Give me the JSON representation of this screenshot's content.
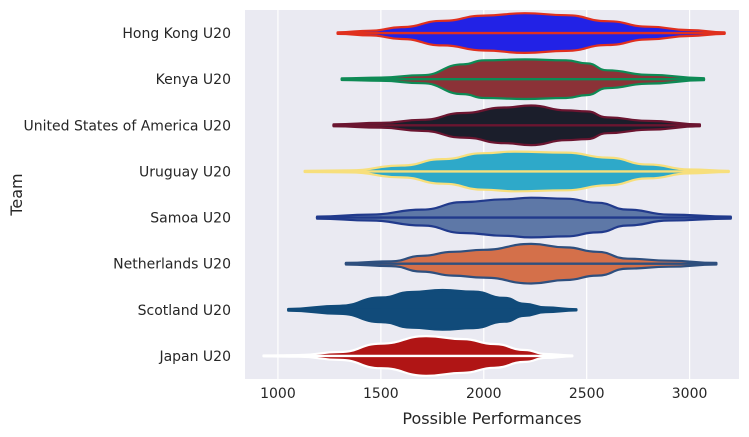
{
  "chart_data": {
    "type": "violin",
    "orientation": "horizontal",
    "title": "",
    "xlabel": "Possible Performances",
    "ylabel": "Team",
    "xlim": [
      840,
      3240
    ],
    "xticks": [
      1000,
      1500,
      2000,
      2500,
      3000
    ],
    "grid": true,
    "legend": "none",
    "background": "#eaeaf2",
    "series": [
      {
        "name": "Hong Kong U20",
        "fill": "#2222e6",
        "edge": "#e0301e",
        "min": 1290,
        "q1": 1950,
        "median": 2200,
        "q3": 2480,
        "max": 3170,
        "profile": [
          [
            1290,
            0.04
          ],
          [
            1450,
            0.12
          ],
          [
            1600,
            0.3
          ],
          [
            1800,
            0.62
          ],
          [
            2000,
            0.88
          ],
          [
            2200,
            1.0
          ],
          [
            2400,
            0.9
          ],
          [
            2600,
            0.6
          ],
          [
            2800,
            0.32
          ],
          [
            3000,
            0.15
          ],
          [
            3170,
            0.04
          ]
        ]
      },
      {
        "name": "Kenya U20",
        "fill": "#8b3237",
        "edge": "#0e8a55",
        "min": 1310,
        "q1": 1950,
        "median": 2200,
        "q3": 2450,
        "max": 3070,
        "profile": [
          [
            1310,
            0.04
          ],
          [
            1500,
            0.08
          ],
          [
            1700,
            0.2
          ],
          [
            1900,
            0.75
          ],
          [
            2000,
            0.95
          ],
          [
            2200,
            1.0
          ],
          [
            2400,
            0.95
          ],
          [
            2500,
            0.8
          ],
          [
            2600,
            0.45
          ],
          [
            2800,
            0.22
          ],
          [
            3070,
            0.05
          ]
        ]
      },
      {
        "name": "United States of America U20",
        "fill": "#1b1e2b",
        "edge": "#6b1530",
        "min": 1270,
        "q1": 1950,
        "median": 2200,
        "q3": 2450,
        "max": 3050,
        "profile": [
          [
            1270,
            0.05
          ],
          [
            1500,
            0.12
          ],
          [
            1700,
            0.28
          ],
          [
            1900,
            0.62
          ],
          [
            2100,
            0.9
          ],
          [
            2230,
            1.0
          ],
          [
            2400,
            0.75
          ],
          [
            2500,
            0.7
          ],
          [
            2600,
            0.4
          ],
          [
            2800,
            0.22
          ],
          [
            3050,
            0.05
          ]
        ]
      },
      {
        "name": "Uruguay U20",
        "fill": "#2ea9c9",
        "edge": "#f7df7c",
        "min": 1130,
        "q1": 1950,
        "median": 2180,
        "q3": 2450,
        "max": 3190,
        "profile": [
          [
            1130,
            0.03
          ],
          [
            1350,
            0.05
          ],
          [
            1600,
            0.3
          ],
          [
            1800,
            0.62
          ],
          [
            2000,
            0.92
          ],
          [
            2150,
            1.0
          ],
          [
            2400,
            0.95
          ],
          [
            2600,
            0.7
          ],
          [
            2800,
            0.35
          ],
          [
            3000,
            0.1
          ],
          [
            3190,
            0.03
          ]
        ]
      },
      {
        "name": "Samoa U20",
        "fill": "#5e78a7",
        "edge": "#213a8c",
        "min": 1190,
        "q1": 1900,
        "median": 2200,
        "q3": 2450,
        "max": 3200,
        "profile": [
          [
            1190,
            0.05
          ],
          [
            1450,
            0.15
          ],
          [
            1700,
            0.4
          ],
          [
            1900,
            0.78
          ],
          [
            2100,
            0.92
          ],
          [
            2230,
            1.0
          ],
          [
            2400,
            0.95
          ],
          [
            2550,
            0.75
          ],
          [
            2700,
            0.4
          ],
          [
            2900,
            0.15
          ],
          [
            3200,
            0.05
          ]
        ]
      },
      {
        "name": "Netherlands U20",
        "fill": "#d4704a",
        "edge": "#2e4f7e",
        "min": 1330,
        "q1": 1950,
        "median": 2200,
        "q3": 2450,
        "max": 3130,
        "profile": [
          [
            1330,
            0.04
          ],
          [
            1550,
            0.12
          ],
          [
            1700,
            0.4
          ],
          [
            1850,
            0.6
          ],
          [
            2000,
            0.7
          ],
          [
            2230,
            1.0
          ],
          [
            2400,
            0.82
          ],
          [
            2550,
            0.6
          ],
          [
            2700,
            0.25
          ],
          [
            2900,
            0.15
          ],
          [
            3130,
            0.04
          ]
        ]
      },
      {
        "name": "Scotland U20",
        "fill": "#114b7a",
        "edge": "#114b7a",
        "min": 1050,
        "q1": 1650,
        "median": 1800,
        "q3": 1950,
        "max": 2450,
        "profile": [
          [
            1050,
            0.04
          ],
          [
            1300,
            0.2
          ],
          [
            1500,
            0.62
          ],
          [
            1650,
            0.9
          ],
          [
            1800,
            1.0
          ],
          [
            1950,
            0.92
          ],
          [
            2100,
            0.6
          ],
          [
            2200,
            0.3
          ],
          [
            2300,
            0.12
          ],
          [
            2450,
            0.03
          ]
        ]
      },
      {
        "name": "Japan U20",
        "fill": "#b01515",
        "edge": "#ffffff",
        "min": 930,
        "q1": 1570,
        "median": 1720,
        "q3": 1870,
        "max": 2430,
        "profile": [
          [
            930,
            0.02
          ],
          [
            1100,
            0.04
          ],
          [
            1300,
            0.2
          ],
          [
            1500,
            0.62
          ],
          [
            1720,
            1.0
          ],
          [
            1900,
            0.85
          ],
          [
            2050,
            0.6
          ],
          [
            2200,
            0.3
          ],
          [
            2300,
            0.1
          ],
          [
            2430,
            0.02
          ]
        ]
      }
    ]
  }
}
